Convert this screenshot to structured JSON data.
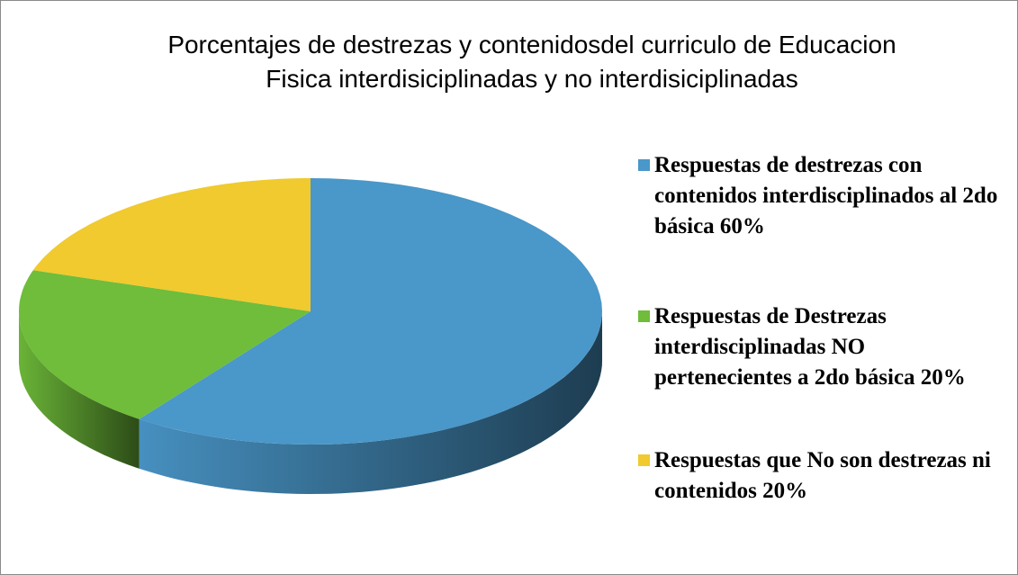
{
  "chart_data": {
    "type": "pie",
    "title": "Porcentajes de destrezas y contenidosdel curriculo de Educacion Fisica interdisiciplinadas y no interdisiciplinadas",
    "categories": [
      "Respuestas de destrezas con contenidos interdisciplinados al 2do básica 60%",
      "Respuestas de Destrezas interdisciplinadas NO pertenecientes a 2do básica 20%",
      "Respuestas que No son destrezas ni contenidos 20%"
    ],
    "values": [
      60,
      20,
      20
    ],
    "colors": [
      "#4a97c9",
      "#6fbd3a",
      "#f0ca2e"
    ],
    "legend": "right"
  }
}
